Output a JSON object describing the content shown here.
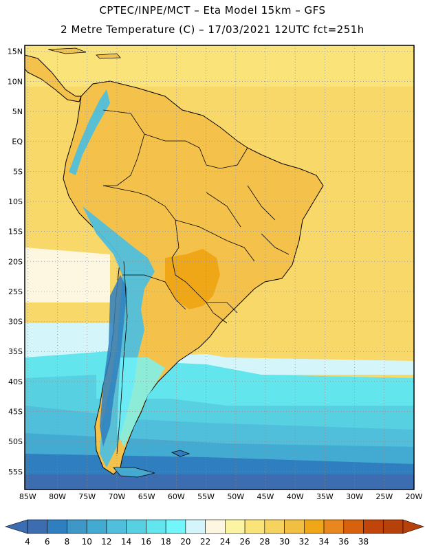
{
  "header": {
    "line1": "CPTEC/INPE/MCT –  Eta Model 15km – GFS",
    "line2": "2 Metre Temperature (C) – 17/03/2021 12UTC fct=251h"
  },
  "map": {
    "lat_labels": [
      "15N",
      "10N",
      "5N",
      "EQ",
      "5S",
      "10S",
      "15S",
      "20S",
      "25S",
      "30S",
      "35S",
      "40S",
      "45S",
      "50S",
      "55S"
    ],
    "lon_labels": [
      "85W",
      "80W",
      "75W",
      "70W",
      "65W",
      "60W",
      "55W",
      "50W",
      "45W",
      "40W",
      "35W",
      "30W",
      "25W",
      "20W"
    ],
    "lat_range": [
      -58,
      16
    ],
    "lon_range": [
      -85.5,
      -20
    ],
    "ocean_color": "#f8d868",
    "land_color": "#f4c24a",
    "border_color": "#000000"
  },
  "colorbar": {
    "labels": [
      "4",
      "6",
      "8",
      "10",
      "12",
      "14",
      "16",
      "18",
      "20",
      "22",
      "24",
      "26",
      "28",
      "30",
      "32",
      "34",
      "36",
      "38"
    ],
    "colors": [
      "#3b6db0",
      "#2f7fc0",
      "#3f97c8",
      "#43abd2",
      "#4fbfdc",
      "#57d1e2",
      "#63e5ee",
      "#72f6fb",
      "#d4f6fb",
      "#fdf7e2",
      "#fbf4a2",
      "#fae479",
      "#f6d25e",
      "#f1c043",
      "#f0a717",
      "#e9871f",
      "#d8610d",
      "#c1440a",
      "#b7410a"
    ],
    "left_arrow_color": "#3b6db0",
    "right_arrow_color": "#b7410a"
  }
}
